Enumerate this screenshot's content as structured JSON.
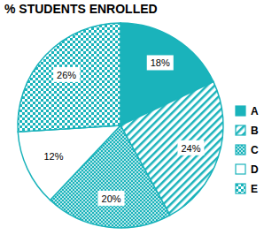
{
  "chart_data": {
    "type": "pie",
    "title": "% STUDENTS ENROLLED",
    "categories": [
      "A",
      "B",
      "C",
      "D",
      "E"
    ],
    "values": [
      18,
      24,
      20,
      12,
      26
    ],
    "value_labels": [
      "18%",
      "24%",
      "20%",
      "12%",
      "26%"
    ],
    "color": "#1ab3bb",
    "data_labels": true,
    "legend": "right"
  }
}
